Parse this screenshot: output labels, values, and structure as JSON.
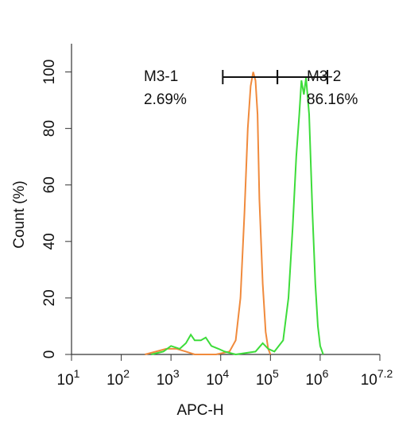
{
  "chart_data": {
    "type": "histogram-line",
    "x_label": "APC-H",
    "y_label": "Count  (%)",
    "xscale": "log",
    "xlim": [
      10,
      15848932
    ],
    "ylim": [
      0,
      110
    ],
    "xticks": [
      {
        "value": 10,
        "label": "10",
        "sup": "1"
      },
      {
        "value": 100,
        "label": "10",
        "sup": "2"
      },
      {
        "value": 1000,
        "label": "10",
        "sup": "3"
      },
      {
        "value": 10000,
        "label": "10",
        "sup": "4"
      },
      {
        "value": 100000,
        "label": "10",
        "sup": "5"
      },
      {
        "value": 1000000,
        "label": "10",
        "sup": "6"
      },
      {
        "value": 15848932,
        "label": "10",
        "sup": "7.2"
      }
    ],
    "yticks": [
      0,
      20,
      40,
      60,
      80,
      100
    ],
    "series": [
      {
        "color": "#f08a3c",
        "x": [
          300,
          500,
          800,
          1300,
          2000,
          3000,
          8000,
          15000,
          20000,
          25000,
          30000,
          35000,
          40000,
          45000,
          50000,
          55000,
          60000,
          70000,
          80000,
          90000,
          100000
        ],
        "values": [
          0,
          1,
          2,
          2,
          1,
          0,
          0,
          1,
          5,
          20,
          50,
          80,
          95,
          100,
          97,
          85,
          55,
          25,
          8,
          2,
          0
        ]
      },
      {
        "color": "#3ddc3a",
        "x": [
          400,
          700,
          1000,
          1500,
          2000,
          2500,
          3000,
          4000,
          5000,
          6500,
          9000,
          12000,
          20000,
          50000,
          70000,
          90000,
          120000,
          180000,
          230000,
          280000,
          330000,
          380000,
          420000,
          470000,
          520000,
          600000,
          700000,
          800000,
          900000,
          1000000,
          1150000
        ],
        "values": [
          0,
          1,
          3,
          2,
          4,
          7,
          5,
          5,
          6,
          3,
          2,
          1,
          0,
          1,
          4,
          2,
          1,
          5,
          20,
          45,
          70,
          85,
          97,
          92,
          98,
          85,
          50,
          25,
          10,
          3,
          0
        ]
      }
    ],
    "gates": [
      {
        "name": "M3-1",
        "value": 2.69,
        "value_label": "2.69%",
        "x": [
          11000,
          138000
        ]
      },
      {
        "name": "M3-2",
        "value": 86.16,
        "value_label": "86.16%",
        "x": [
          138000,
          1400000
        ]
      }
    ]
  }
}
